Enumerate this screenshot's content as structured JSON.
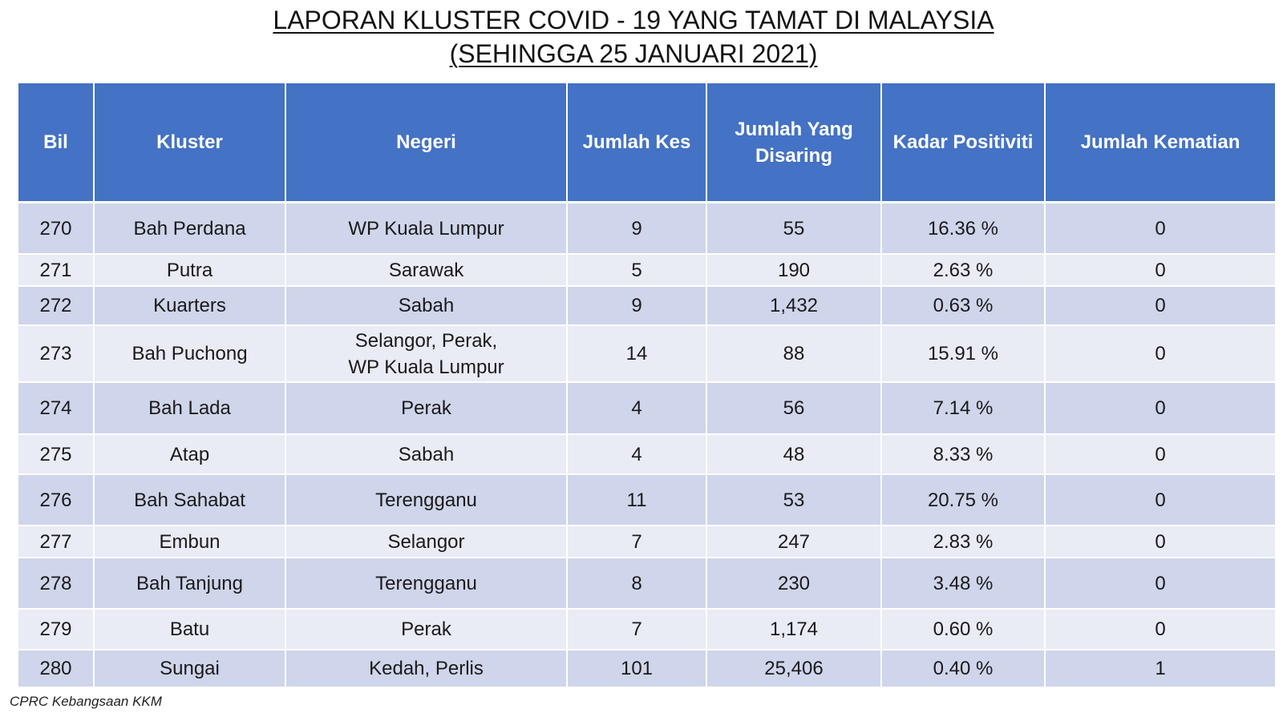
{
  "title": {
    "line1": "LAPORAN KLUSTER COVID - 19 YANG TAMAT DI MALAYSIA",
    "line2": "(SEHINGGA 25 JANUARI 2021)"
  },
  "colors": {
    "header_bg": "#4472c4",
    "row_dark": "#cfd5ea",
    "row_light": "#e9ebf5"
  },
  "table": {
    "headers": [
      "Bil",
      "Kluster",
      "Negeri",
      "Jumlah Kes",
      "Jumlah Yang\nDisaring",
      "Kadar Positiviti",
      "Jumlah Kematian"
    ],
    "rows": [
      [
        "270",
        "Bah Perdana",
        "WP Kuala Lumpur",
        "9",
        "55",
        "16.36 %",
        "0"
      ],
      [
        "271",
        "Putra",
        "Sarawak",
        "5",
        "190",
        "2.63 %",
        "0"
      ],
      [
        "272",
        "Kuarters",
        "Sabah",
        "9",
        "1,432",
        "0.63 %",
        "0"
      ],
      [
        "273",
        "Bah Puchong",
        "Selangor, Perak,\nWP Kuala Lumpur",
        "14",
        "88",
        "15.91 %",
        "0"
      ],
      [
        "274",
        "Bah Lada",
        "Perak",
        "4",
        "56",
        "7.14 %",
        "0"
      ],
      [
        "275",
        "Atap",
        "Sabah",
        "4",
        "48",
        "8.33 %",
        "0"
      ],
      [
        "276",
        "Bah Sahabat",
        "Terengganu",
        "11",
        "53",
        "20.75 %",
        "0"
      ],
      [
        "277",
        "Embun",
        "Selangor",
        "7",
        "247",
        "2.83 %",
        "0"
      ],
      [
        "278",
        "Bah Tanjung",
        "Terengganu",
        "8",
        "230",
        "3.48 %",
        "0"
      ],
      [
        "279",
        "Batu",
        "Perak",
        "7",
        "1,174",
        "0.60 %",
        "0"
      ],
      [
        "280",
        "Sungai",
        "Kedah, Perlis",
        "101",
        "25,406",
        "0.40 %",
        "1"
      ]
    ]
  },
  "footer": "CPRC Kebangsaan KKM"
}
